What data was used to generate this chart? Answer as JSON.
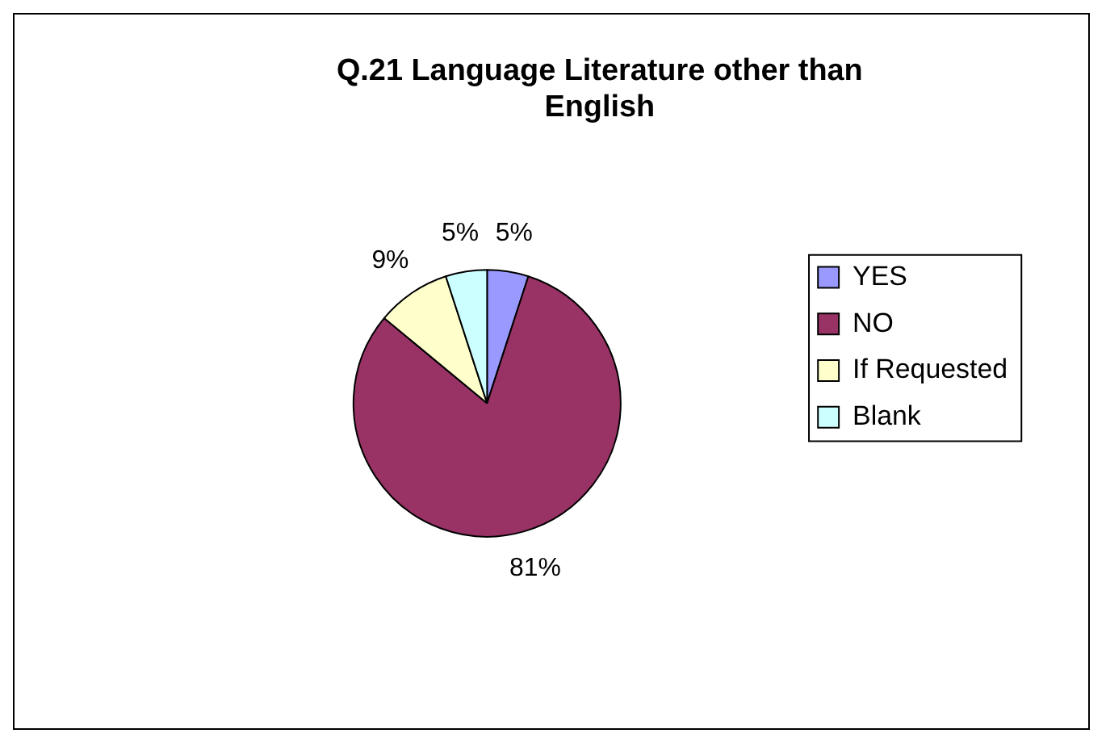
{
  "chart_data": {
    "type": "pie",
    "title": "Q.21 Language Literature other than English",
    "categories": [
      "YES",
      "NO",
      "If Requested",
      "Blank"
    ],
    "values": [
      5,
      81,
      9,
      5
    ],
    "value_labels": [
      "5%",
      "81%",
      "9%",
      "5%"
    ],
    "colors": [
      "#9999ff",
      "#993366",
      "#ffffcc",
      "#ccffff"
    ],
    "legend": "right"
  }
}
